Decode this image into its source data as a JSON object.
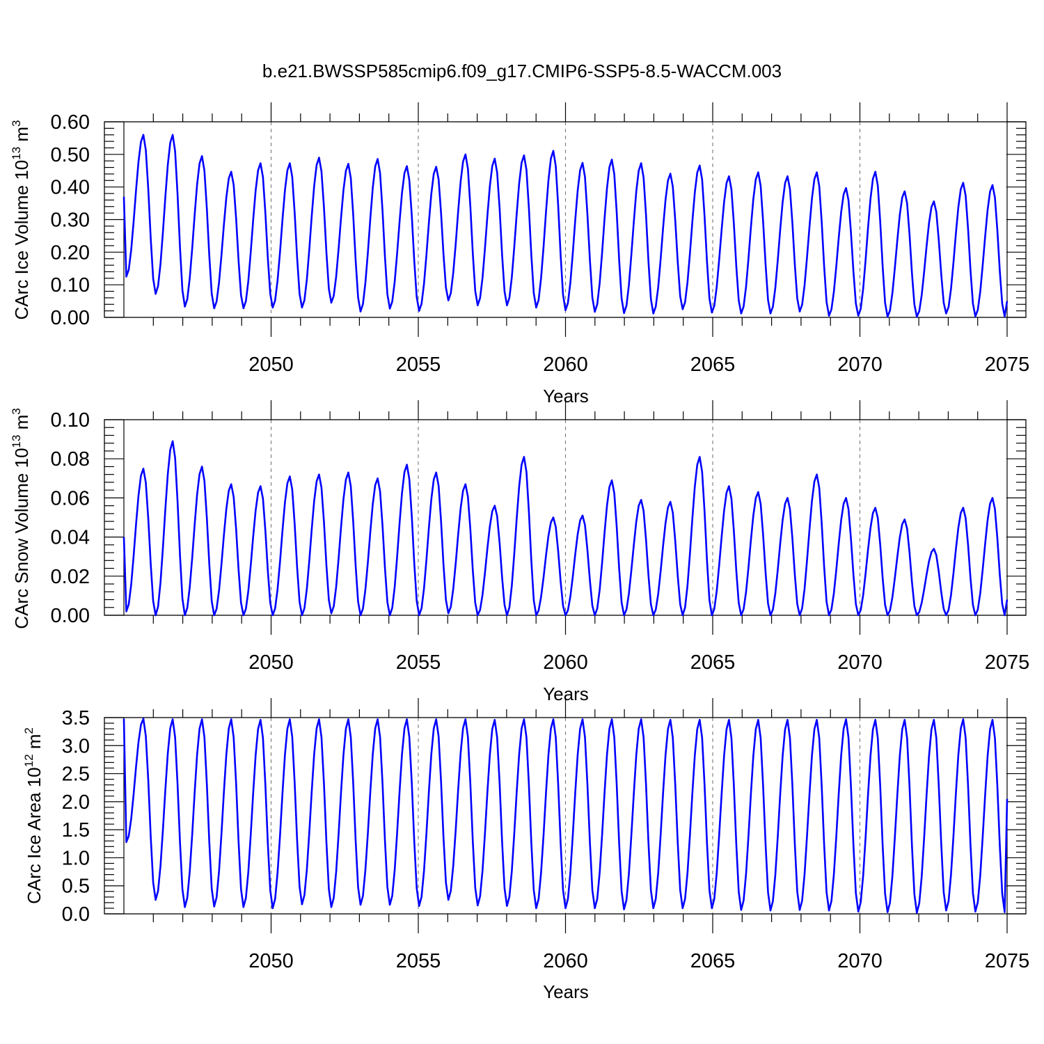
{
  "title": "b.e21.BWSSP585cmip6.f09_g17.CMIP6-SSP5-8.5-WACCM.003",
  "chart_data": [
    {
      "type": "line",
      "ylabel_main": "CArc Ice Volume 10",
      "ylabel_exp": "13",
      "ylabel_unit": " m",
      "ylabel_unit_exp": "3",
      "xlabel": "Years",
      "xlim": [
        2045.0,
        2075.0
      ],
      "ylim": [
        0.0,
        0.6
      ],
      "ytick_values": [
        0.0,
        0.1,
        0.2,
        0.3,
        0.4,
        0.5,
        0.6
      ],
      "ytick_labels": [
        "0.00",
        "0.10",
        "0.20",
        "0.30",
        "0.40",
        "0.50",
        "0.60"
      ],
      "xtick_values": [
        2050,
        2055,
        2060,
        2065,
        2070,
        2075
      ],
      "xtick_labels": [
        "2050",
        "2055",
        "2060",
        "2065",
        "2070",
        "2075"
      ],
      "color": "#0000ff",
      "series_name": "CArc Ice Volume",
      "start_year": 2045.0,
      "step": 0.0833333,
      "cycle_points": 11,
      "peaks": [
        0.56,
        0.56,
        0.495,
        0.447,
        0.473,
        0.473,
        0.49,
        0.471,
        0.486,
        0.464,
        0.462,
        0.5,
        0.487,
        0.497,
        0.511,
        0.474,
        0.484,
        0.473,
        0.441,
        0.466,
        0.433,
        0.445,
        0.433,
        0.445,
        0.397,
        0.447,
        0.387,
        0.356,
        0.413,
        0.406
      ],
      "troughs": [
        0.125,
        0.072,
        0.033,
        0.028,
        0.028,
        0.03,
        0.03,
        0.045,
        0.018,
        0.027,
        0.02,
        0.052,
        0.037,
        0.037,
        0.03,
        0.022,
        0.017,
        0.013,
        0.012,
        0.025,
        0.015,
        0.012,
        0.012,
        0.018,
        0.005,
        0.005,
        0.002,
        0.002,
        0.012,
        0.003,
        0.003
      ],
      "start_value": 0.37,
      "end_value": 0.05
    },
    {
      "type": "line",
      "ylabel_main": "CArc Snow Volume 10",
      "ylabel_exp": "13",
      "ylabel_unit": " m",
      "ylabel_unit_exp": "3",
      "xlabel": "Years",
      "xlim": [
        2045.0,
        2075.0
      ],
      "ylim": [
        0.0,
        0.1
      ],
      "ytick_values": [
        0.0,
        0.02,
        0.04,
        0.06,
        0.08,
        0.1
      ],
      "ytick_labels": [
        "0.00",
        "0.02",
        "0.04",
        "0.06",
        "0.08",
        "0.10"
      ],
      "xtick_values": [
        2050,
        2055,
        2060,
        2065,
        2070,
        2075
      ],
      "xtick_labels": [
        "2050",
        "2055",
        "2060",
        "2065",
        "2070",
        "2075"
      ],
      "color": "#0000ff",
      "series_name": "CArc Snow Volume",
      "start_year": 2045.0,
      "step": 0.0833333,
      "cycle_points": 11,
      "peaks": [
        0.075,
        0.089,
        0.076,
        0.067,
        0.066,
        0.071,
        0.072,
        0.073,
        0.07,
        0.077,
        0.073,
        0.067,
        0.056,
        0.081,
        0.05,
        0.051,
        0.069,
        0.059,
        0.058,
        0.081,
        0.066,
        0.063,
        0.06,
        0.072,
        0.06,
        0.055,
        0.049,
        0.034,
        0.055,
        0.06
      ],
      "troughs": [
        0.002,
        0.0,
        0.0,
        0.0,
        0.0,
        0.0,
        0.0,
        0.001,
        0.0,
        0.0,
        0.0,
        0.001,
        0.0,
        0.0,
        0.0,
        0.0,
        0.0,
        0.0,
        0.0,
        0.0,
        0.0,
        0.0,
        0.0,
        0.0,
        0.0,
        0.0,
        0.0,
        0.0,
        0.0,
        0.0,
        0.0
      ],
      "start_value": 0.04,
      "end_value": 0.008
    },
    {
      "type": "line",
      "ylabel_main": "CArc Ice Area 10",
      "ylabel_exp": "12",
      "ylabel_unit": " m",
      "ylabel_unit_exp": "2",
      "xlabel": "Years",
      "xlim": [
        2045.0,
        2075.0
      ],
      "ylim": [
        0.0,
        3.5
      ],
      "ytick_values": [
        0.0,
        0.5,
        1.0,
        1.5,
        2.0,
        2.5,
        3.0,
        3.5
      ],
      "ytick_labels": [
        "0.0",
        "0.5",
        "1.0",
        "1.5",
        "2.0",
        "2.5",
        "3.0",
        "3.5"
      ],
      "xtick_values": [
        2050,
        2055,
        2060,
        2065,
        2070,
        2075
      ],
      "xtick_labels": [
        "2050",
        "2055",
        "2060",
        "2065",
        "2070",
        "2075"
      ],
      "color": "#0000ff",
      "series_name": "CArc Ice Area",
      "start_year": 2045.0,
      "step": 0.0833333,
      "cycle_points": 11,
      "peaks": [
        3.48,
        3.47,
        3.47,
        3.47,
        3.46,
        3.47,
        3.47,
        3.47,
        3.47,
        3.47,
        3.47,
        3.47,
        3.46,
        3.47,
        3.47,
        3.47,
        3.47,
        3.47,
        3.46,
        3.46,
        3.46,
        3.46,
        3.46,
        3.46,
        3.47,
        3.46,
        3.46,
        3.46,
        3.47,
        3.46
      ],
      "troughs": [
        1.28,
        0.25,
        0.12,
        0.13,
        0.12,
        0.1,
        0.17,
        0.12,
        0.16,
        0.16,
        0.14,
        0.25,
        0.15,
        0.14,
        0.1,
        0.1,
        0.1,
        0.08,
        0.1,
        0.1,
        0.1,
        0.07,
        0.06,
        0.07,
        0.06,
        0.04,
        0.03,
        0.02,
        0.06,
        0.04,
        0.03
      ],
      "start_value": 3.48,
      "end_value": 2.05
    }
  ]
}
